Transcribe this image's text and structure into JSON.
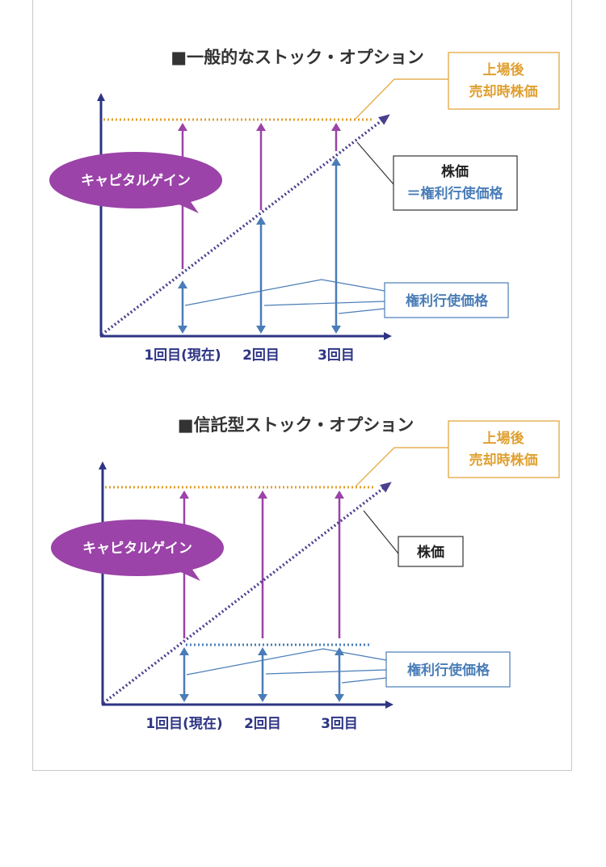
{
  "diagrams": [
    {
      "title": "■一般的なストック・オプション",
      "listing_label": [
        "上場後",
        "売却時株価"
      ],
      "stock_label_line1": "株価",
      "stock_label_line2": "＝権利行使価格",
      "exercise_label": "権利行使価格",
      "bubble": "キャピタルゲイン",
      "ticks": [
        "1回目(現在)",
        "2回目",
        "3回目"
      ]
    },
    {
      "title": "■信託型ストック・オプション",
      "listing_label": [
        "上場後",
        "売却時株価"
      ],
      "stock_label_line1": "株価",
      "exercise_label": "権利行使価格",
      "bubble": "キャピタルゲイン",
      "ticks": [
        "1回目(現在)",
        "2回目",
        "3回目"
      ]
    }
  ],
  "colors": {
    "axis": "#2e3484",
    "orange": "#e0a030",
    "purple": "#9b43a8",
    "blue": "#4a7db8",
    "dotted_line": "#4a3f8f",
    "box_border_dark": "#333333"
  }
}
